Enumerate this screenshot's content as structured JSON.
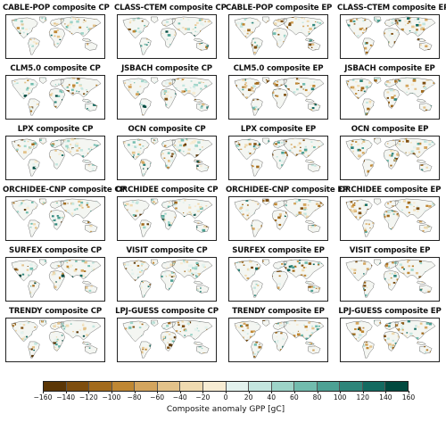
{
  "figure": {
    "panels": [
      {
        "title": "CABLE-POP composite CP",
        "model": "CABLE-POP",
        "phase": "CP"
      },
      {
        "title": "CLASS-CTEM composite CP",
        "model": "CLASS-CTEM",
        "phase": "CP"
      },
      {
        "title": "CABLE-POP composite EP",
        "model": "CABLE-POP",
        "phase": "EP"
      },
      {
        "title": "CLASS-CTEM composite EP",
        "model": "CLASS-CTEM",
        "phase": "EP"
      },
      {
        "title": "CLM5.0 composite CP",
        "model": "CLM5.0",
        "phase": "CP"
      },
      {
        "title": "JSBACH composite CP",
        "model": "JSBACH",
        "phase": "CP"
      },
      {
        "title": "CLM5.0 composite EP",
        "model": "CLM5.0",
        "phase": "EP"
      },
      {
        "title": "JSBACH composite EP",
        "model": "JSBACH",
        "phase": "EP"
      },
      {
        "title": "LPX composite CP",
        "model": "LPX",
        "phase": "CP"
      },
      {
        "title": "OCN composite CP",
        "model": "OCN",
        "phase": "CP"
      },
      {
        "title": "LPX composite EP",
        "model": "LPX",
        "phase": "EP"
      },
      {
        "title": "OCN composite EP",
        "model": "OCN",
        "phase": "EP"
      },
      {
        "title": "ORCHIDEE-CNP composite CP",
        "model": "ORCHIDEE-CNP",
        "phase": "CP"
      },
      {
        "title": "ORCHIDEE composite CP",
        "model": "ORCHIDEE",
        "phase": "CP"
      },
      {
        "title": "ORCHIDEE-CNP composite EP",
        "model": "ORCHIDEE-CNP",
        "phase": "EP"
      },
      {
        "title": "ORCHIDEE composite EP",
        "model": "ORCHIDEE",
        "phase": "EP"
      },
      {
        "title": "SURFEX composite CP",
        "model": "SURFEX",
        "phase": "CP"
      },
      {
        "title": "VISIT composite CP",
        "model": "VISIT",
        "phase": "CP"
      },
      {
        "title": "SURFEX composite EP",
        "model": "SURFEX",
        "phase": "EP"
      },
      {
        "title": "VISIT composite EP",
        "model": "VISIT",
        "phase": "EP"
      },
      {
        "title": "TRENDY composite CP",
        "model": "TRENDY",
        "phase": "CP"
      },
      {
        "title": "LPJ-GUESS composite CP",
        "model": "LPJ-GUESS",
        "phase": "CP"
      },
      {
        "title": "TRENDY composite EP",
        "model": "TRENDY",
        "phase": "EP"
      },
      {
        "title": "LPJ-GUESS composite EP",
        "model": "LPJ-GUESS",
        "phase": "EP"
      }
    ]
  },
  "colorbar": {
    "label": "Composite anomaly GPP [gC]",
    "ticks": [
      "−160",
      "−140",
      "−120",
      "−100",
      "−80",
      "−60",
      "−40",
      "−20",
      "0",
      "20",
      "40",
      "60",
      "80",
      "100",
      "120",
      "140",
      "160"
    ],
    "colors": [
      "#5b3606",
      "#7e4e0f",
      "#a26a1b",
      "#bf8733",
      "#d4a55e",
      "#e3c28a",
      "#efdab0",
      "#f7ecd3",
      "#e3f2ee",
      "#c4e6df",
      "#9dd4c8",
      "#72bcae",
      "#4da194",
      "#2e857a",
      "#136a60",
      "#00493f"
    ]
  }
}
